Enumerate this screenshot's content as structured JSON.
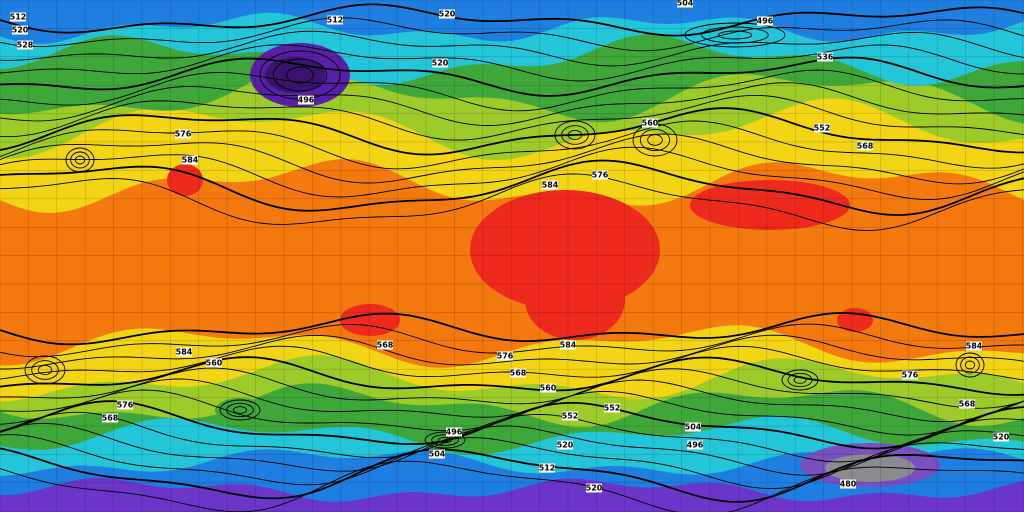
{
  "contour_labels": [
    512,
    520,
    528,
    512,
    520,
    504,
    496,
    536,
    496,
    520,
    576,
    584,
    560,
    584,
    576,
    568,
    552,
    568,
    584,
    584,
    576,
    568,
    560,
    552,
    552,
    520,
    496,
    504,
    512,
    520,
    496,
    504,
    480,
    568,
    520,
    584,
    576,
    560,
    568,
    576
  ]
}
